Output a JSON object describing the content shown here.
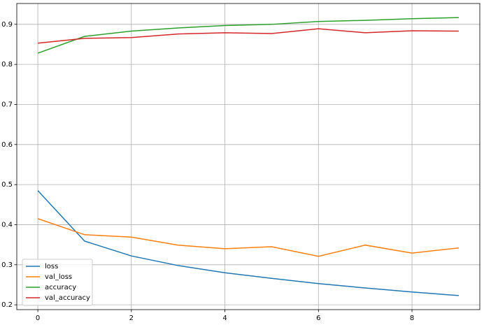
{
  "chart_data": {
    "type": "line",
    "x": [
      0,
      1,
      2,
      3,
      4,
      5,
      6,
      7,
      8,
      9
    ],
    "series": [
      {
        "name": "loss",
        "color": "#1f77b4",
        "values": [
          0.485,
          0.359,
          0.322,
          0.298,
          0.28,
          0.266,
          0.253,
          0.242,
          0.232,
          0.223
        ]
      },
      {
        "name": "val_loss",
        "color": "#ff7f0e",
        "values": [
          0.415,
          0.375,
          0.369,
          0.349,
          0.34,
          0.345,
          0.321,
          0.349,
          0.329,
          0.342
        ]
      },
      {
        "name": "accuracy",
        "color": "#2ca02c",
        "values": [
          0.828,
          0.87,
          0.883,
          0.891,
          0.897,
          0.9,
          0.907,
          0.91,
          0.914,
          0.917
        ]
      },
      {
        "name": "val_accuracy",
        "color": "#d62728",
        "values": [
          0.853,
          0.865,
          0.867,
          0.876,
          0.879,
          0.877,
          0.889,
          0.879,
          0.884,
          0.883
        ]
      }
    ],
    "xlim": [
      -0.45,
      9.45
    ],
    "xticks": [
      0,
      2,
      4,
      6,
      8
    ],
    "ylim": [
      0.188,
      0.952
    ],
    "yticks": [
      0.2,
      0.3,
      0.4,
      0.5,
      0.6,
      0.7,
      0.8,
      0.9
    ],
    "grid": true,
    "legend": "lower left"
  }
}
